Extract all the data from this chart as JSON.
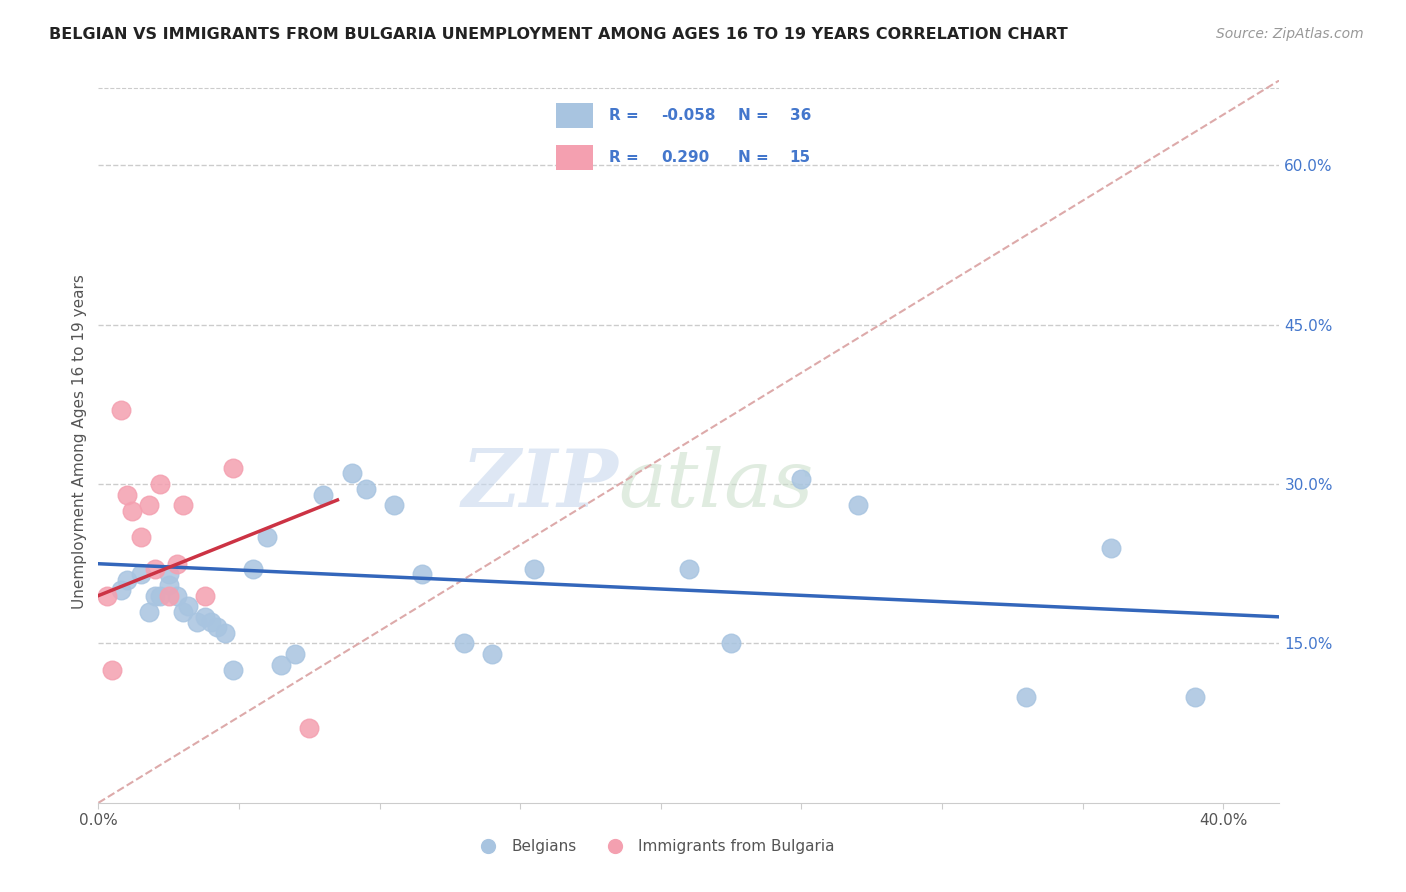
{
  "title": "BELGIAN VS IMMIGRANTS FROM BULGARIA UNEMPLOYMENT AMONG AGES 16 TO 19 YEARS CORRELATION CHART",
  "source": "Source: ZipAtlas.com",
  "ylabel": "Unemployment Among Ages 16 to 19 years",
  "xlim": [
    0.0,
    0.42
  ],
  "ylim": [
    0.0,
    0.68
  ],
  "right_yticks": [
    0.15,
    0.3,
    0.45,
    0.6
  ],
  "right_yticklabels": [
    "15.0%",
    "30.0%",
    "45.0%",
    "60.0%"
  ],
  "xticks": [
    0.0,
    0.05,
    0.1,
    0.15,
    0.2,
    0.25,
    0.3,
    0.35,
    0.4
  ],
  "xticklabels": [
    "0.0%",
    "",
    "",
    "",
    "",
    "",
    "",
    "",
    "40.0%"
  ],
  "belgian_color": "#a8c4e0",
  "bulgaria_color": "#f4a0b0",
  "trend_belgian_color": "#3366bb",
  "trend_bulgaria_color": "#cc3344",
  "diag_line_color": "#ddaaaa",
  "legend_R_belgian": "-0.058",
  "legend_N_belgian": "36",
  "legend_R_bulgaria": "0.290",
  "legend_N_bulgaria": "15",
  "watermark_zip": "ZIP",
  "watermark_atlas": "atlas",
  "belgian_x": [
    0.008,
    0.01,
    0.015,
    0.018,
    0.02,
    0.022,
    0.025,
    0.025,
    0.028,
    0.03,
    0.032,
    0.035,
    0.038,
    0.04,
    0.042,
    0.045,
    0.048,
    0.055,
    0.06,
    0.065,
    0.07,
    0.08,
    0.09,
    0.095,
    0.105,
    0.115,
    0.13,
    0.14,
    0.155,
    0.21,
    0.225,
    0.25,
    0.27,
    0.33,
    0.36,
    0.39
  ],
  "belgian_y": [
    0.2,
    0.21,
    0.215,
    0.18,
    0.195,
    0.195,
    0.215,
    0.205,
    0.195,
    0.18,
    0.185,
    0.17,
    0.175,
    0.17,
    0.165,
    0.16,
    0.125,
    0.22,
    0.25,
    0.13,
    0.14,
    0.29,
    0.31,
    0.295,
    0.28,
    0.215,
    0.15,
    0.14,
    0.22,
    0.22,
    0.15,
    0.305,
    0.28,
    0.1,
    0.24,
    0.1
  ],
  "bulgaria_x": [
    0.003,
    0.005,
    0.008,
    0.01,
    0.012,
    0.015,
    0.018,
    0.02,
    0.022,
    0.025,
    0.028,
    0.03,
    0.038,
    0.048,
    0.075
  ],
  "bulgaria_y": [
    0.195,
    0.125,
    0.37,
    0.29,
    0.275,
    0.25,
    0.28,
    0.22,
    0.3,
    0.195,
    0.225,
    0.28,
    0.195,
    0.315,
    0.07
  ],
  "bel_trend_x0": 0.0,
  "bel_trend_x1": 0.42,
  "bel_trend_y0": 0.225,
  "bel_trend_y1": 0.175,
  "bul_trend_x0": 0.0,
  "bul_trend_x1": 0.085,
  "bul_trend_y0": 0.195,
  "bul_trend_y1": 0.285
}
